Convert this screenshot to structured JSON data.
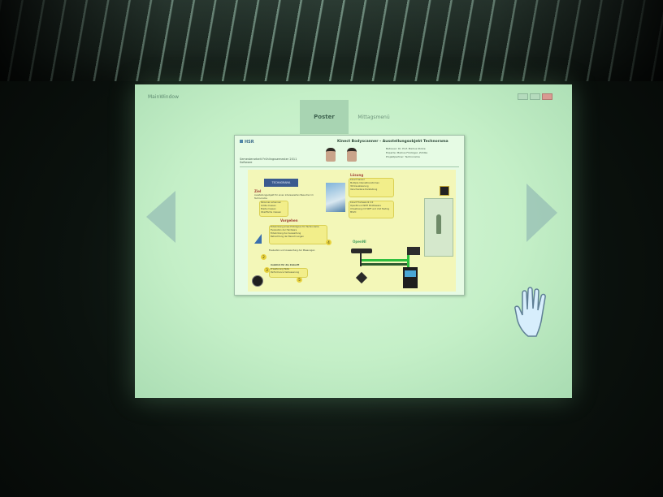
{
  "window": {
    "title": "MainWindow"
  },
  "tabs": [
    {
      "label": "Poster",
      "selected": true
    },
    {
      "label": "Mittagsmenü",
      "selected": false
    }
  ],
  "poster": {
    "logo_text": "HSR",
    "subtitle": "Semesterarbeit Frühlingssemester 2011",
    "sub2": "Software",
    "title": "Kinect Bodyscanner – Ausstellungsobjekt Technorama",
    "meta": [
      "Betreuer: Dr. Prof. Markus Stolze",
      "Experte: Markus Flückiger, Zühlke",
      "Projektpartner: Technorama"
    ],
    "content": {
      "tech_logo": "TECHNORAMA",
      "ziel_heading": "Ziel",
      "ziel_text": "Ausstellungsobjekt für einen interessierten Besucher im Technorama",
      "ziel_bullets": [
        "Personen erkennen",
        "Größe messen",
        "Breite messen",
        "Oberfläche messen"
      ],
      "loesung_heading": "Lösung",
      "loesung_text": [
        "Kinect Sensor",
        "Multiple Interaktionsformen",
        "3D-Visualisierung",
        "Verschiedene Darstellung"
      ],
      "technologien": [
        "Kinect Framework 2.0",
        "OpenNI und NITE Middleware",
        "Umsetzung mit WPF und Unit Testing",
        "MSVC"
      ],
      "vorgehen_heading": "Vorgehen",
      "vorgehen_items": [
        "Entwicklung eines Prototypen für Technorama",
        "Evaluation der Hardware",
        "Entwicklung der Auswertung",
        "Betrachtung der Berechnungen"
      ],
      "evaluation_text": "Evaluation und Auswertung der Messungen",
      "ausblick_heading": "Ausblick für die Zukunft",
      "ausblick_items": [
        "Erweiterung Tests",
        "Performance Verbesserung"
      ],
      "opencv_label": "OpenNI"
    }
  },
  "colors": {
    "screen": "#c4efc7",
    "tab_selected": "#a8d4b2",
    "nav_arrow": "#96beb4",
    "heading_red": "#a3453a",
    "content_bg": "#f3f7b8"
  },
  "icons": {
    "left": "left-arrow-icon",
    "right": "right-arrow-icon",
    "hand": "hand-cursor-icon"
  }
}
